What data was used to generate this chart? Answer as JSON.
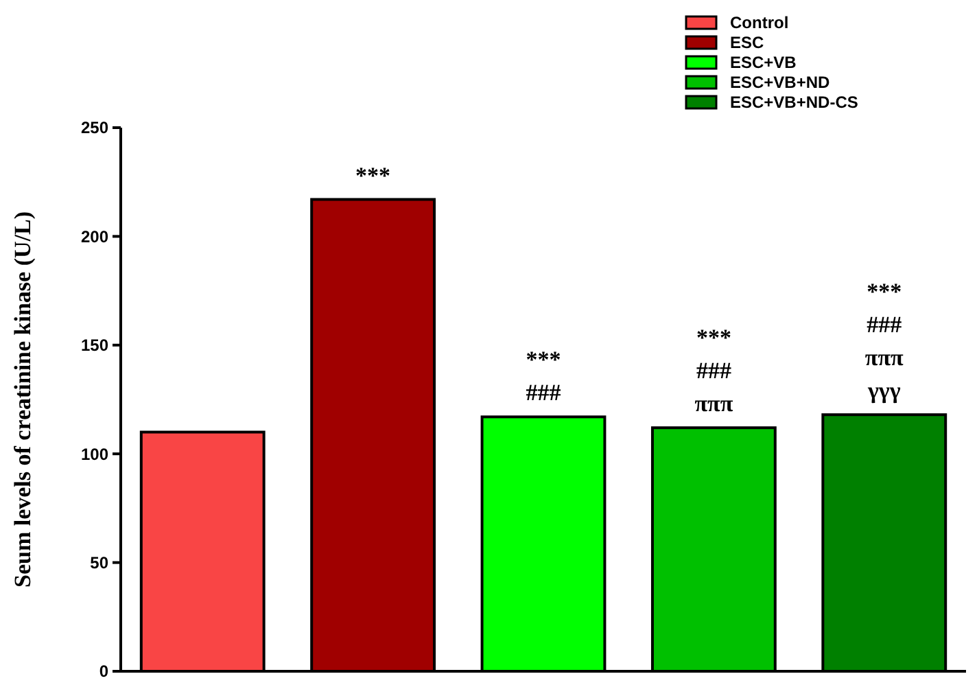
{
  "chart_data": {
    "type": "bar",
    "ylabel": "Seum levels of creatinine kinase (U/L)",
    "categories": [
      null,
      null,
      null,
      null,
      null
    ],
    "series": [
      {
        "name": "Control",
        "color": "#f94545",
        "values": [
          110,
          null,
          null,
          null,
          null
        ],
        "value_labels": [
          null,
          null,
          null,
          null,
          null
        ]
      },
      {
        "name": "ESC",
        "color": "#a00000",
        "values": [
          null,
          217,
          null,
          null,
          null
        ],
        "value_labels": [
          null,
          "***",
          null,
          null,
          null
        ]
      },
      {
        "name": "ESC+VB",
        "color": "#00ff00",
        "values": [
          null,
          null,
          117,
          null,
          null
        ],
        "value_labels": [
          null,
          null,
          "***\n###",
          null,
          null
        ]
      },
      {
        "name": "ESC+VB+ND",
        "color": "#00c000",
        "values": [
          null,
          null,
          null,
          112,
          null
        ],
        "value_labels": [
          null,
          null,
          null,
          "***\n###\nπππ",
          null
        ]
      },
      {
        "name": "ESC+VB+ND-CS",
        "color": "#008000",
        "values": [
          null,
          null,
          null,
          null,
          118
        ],
        "value_labels": [
          null,
          null,
          null,
          null,
          "***\n###\nπππ\nγγγ"
        ]
      }
    ],
    "ylim": [
      0,
      250
    ],
    "yticks": [
      0,
      50,
      100,
      150,
      200,
      250
    ],
    "legend": "top right",
    "grid": false
  }
}
